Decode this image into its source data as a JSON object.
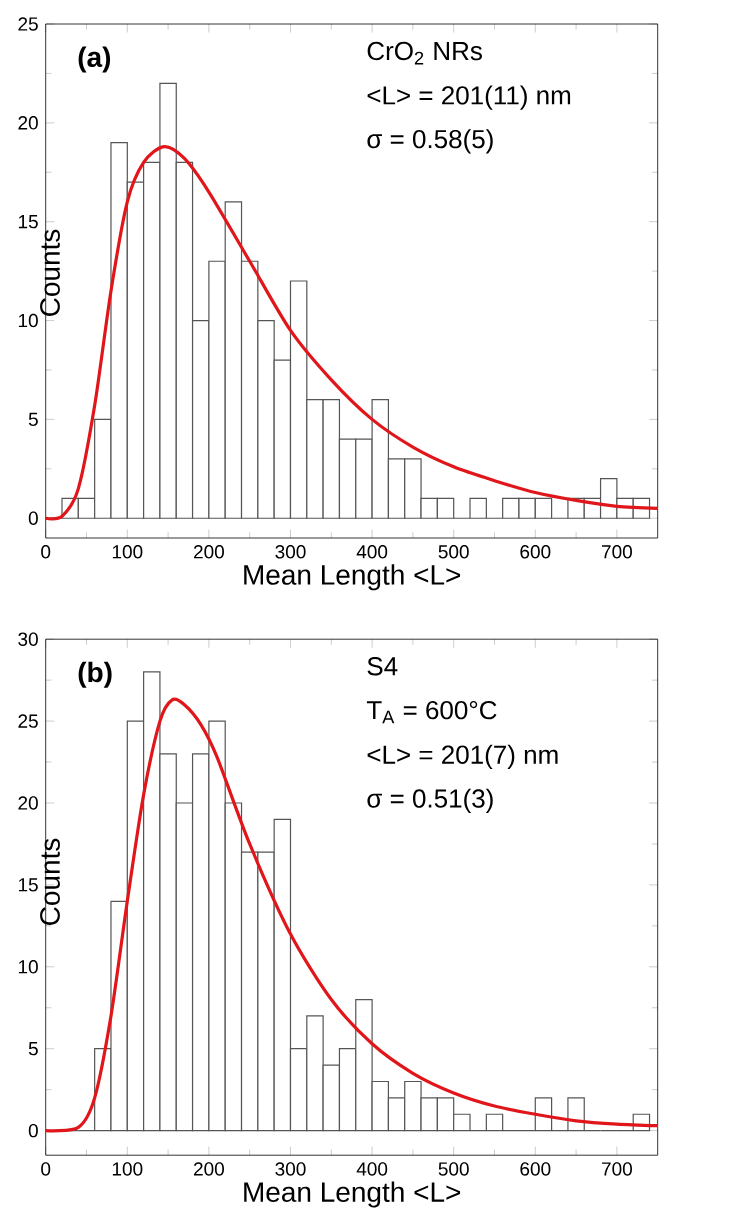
{
  "chart_data": [
    {
      "type": "histogram",
      "xlabel": "Mean Length <L>",
      "ylabel": "Counts",
      "annotations": [
        "(a)",
        "CrO$_{2}$ NRs",
        "<L> = 201(11) nm",
        "σ = 0.58(5)"
      ],
      "bins": [
        0,
        20,
        40,
        60,
        80,
        100,
        120,
        140,
        160,
        180,
        200,
        220,
        240,
        260,
        280,
        300,
        320,
        340,
        360,
        380,
        400,
        420,
        440,
        460,
        480,
        500,
        520,
        540,
        560,
        580,
        600,
        620,
        640,
        660,
        680,
        700,
        720,
        740
      ],
      "xlim": [
        0,
        750
      ],
      "xticks": [
        0,
        100,
        200,
        300,
        400,
        500,
        600,
        700
      ],
      "ylim": [
        -1,
        25
      ],
      "yticks": [
        0,
        5,
        10,
        15,
        20,
        25
      ],
      "series": [
        {
          "color": "#555555",
          "values": [
            0,
            1,
            1,
            5,
            19,
            17,
            18,
            22,
            18,
            10,
            13,
            16,
            13,
            10,
            8,
            12,
            6,
            6,
            4,
            4,
            6,
            3,
            3,
            1,
            1,
            0,
            1,
            0,
            1,
            1,
            1,
            0,
            1,
            1,
            2,
            1,
            1
          ]
        },
        {
          "type": "line",
          "color": "#e0161b",
          "x": [
            0,
            20,
            40,
            60,
            80,
            100,
            120,
            145,
            170,
            200,
            250,
            300,
            350,
            400,
            450,
            500,
            550,
            600,
            650,
            700,
            750
          ],
          "values": [
            0,
            0.1,
            1.5,
            5.7,
            11.5,
            16,
            18,
            18.8,
            18.2,
            16.5,
            13,
            9.5,
            7,
            5,
            3.6,
            2.6,
            1.9,
            1.3,
            0.9,
            0.6,
            0.5
          ]
        }
      ]
    },
    {
      "type": "histogram",
      "xlabel": "Mean Length <L>",
      "ylabel": "Counts",
      "annotations": [
        "(b)",
        "S4",
        "T$_{A}$ = 600°C",
        "<L> = 201(7) nm",
        "σ = 0.51(3)"
      ],
      "bins": [
        0,
        20,
        40,
        60,
        80,
        100,
        120,
        140,
        160,
        180,
        200,
        220,
        240,
        260,
        280,
        300,
        320,
        340,
        360,
        380,
        400,
        420,
        440,
        460,
        480,
        500,
        520,
        540,
        560,
        580,
        600,
        620,
        640,
        660,
        680,
        700,
        720,
        740
      ],
      "xlim": [
        0,
        750
      ],
      "xticks": [
        0,
        100,
        200,
        300,
        400,
        500,
        600,
        700
      ],
      "ylim": [
        -1.5,
        30
      ],
      "yticks": [
        0,
        5,
        10,
        15,
        20,
        25,
        30
      ],
      "series": [
        {
          "color": "#555555",
          "values": [
            0,
            0,
            0,
            5,
            14,
            25,
            28,
            23,
            20,
            23,
            25,
            20,
            17,
            17,
            19,
            5,
            7,
            4,
            5,
            8,
            3,
            2,
            3,
            2,
            2,
            1,
            0,
            1,
            0,
            0,
            2,
            0,
            2,
            0,
            0,
            0,
            1
          ]
        },
        {
          "type": "line",
          "color": "#e0161b",
          "x": [
            0,
            40,
            60,
            80,
            100,
            120,
            140,
            155,
            170,
            190,
            210,
            250,
            300,
            350,
            400,
            450,
            500,
            550,
            600,
            650,
            700,
            750
          ],
          "values": [
            0,
            0.2,
            2,
            7,
            14,
            20.5,
            25,
            26.3,
            26,
            24.8,
            22.8,
            17.5,
            12,
            8,
            5.3,
            3.5,
            2.3,
            1.5,
            1,
            0.6,
            0.4,
            0.3
          ]
        }
      ]
    }
  ]
}
